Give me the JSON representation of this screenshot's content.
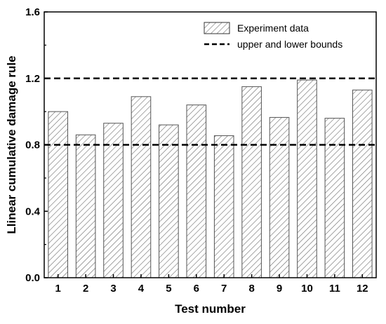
{
  "chart_data": {
    "type": "bar",
    "xlabel": "Test number",
    "ylabel": "Llinear cumulative damage rule",
    "categories": [
      "1",
      "2",
      "3",
      "4",
      "5",
      "6",
      "7",
      "8",
      "9",
      "10",
      "11",
      "12"
    ],
    "series": [
      {
        "name": "Experiment data",
        "values": [
          1.0,
          0.86,
          0.93,
          1.09,
          0.92,
          1.04,
          0.855,
          1.15,
          0.965,
          1.19,
          0.96,
          1.13
        ]
      }
    ],
    "reference_lines": {
      "name": "upper and lower bounds",
      "values": [
        0.8,
        1.2
      ],
      "style": "dashed",
      "color": "#000000"
    },
    "ylim": [
      0,
      1.6
    ],
    "yticks": [
      "0.0",
      "0.4",
      "0.8",
      "1.2",
      "1.6"
    ],
    "grid": false,
    "legend_position": "top-right",
    "bar_fill": "hatched",
    "bar_color": "#555555"
  }
}
